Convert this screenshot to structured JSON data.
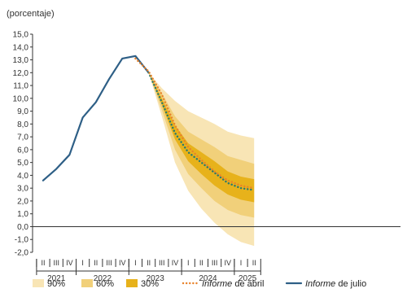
{
  "chart_data": {
    "type": "area",
    "ylabel": "(porcentaje)",
    "ylim": [
      -2,
      15
    ],
    "y_ticks": [
      -2,
      -1,
      0,
      1,
      2,
      3,
      4,
      5,
      6,
      7,
      8,
      9,
      10,
      11,
      12,
      13,
      14,
      15
    ],
    "y_tick_labels": [
      "-2,0",
      "-1,0",
      "0,0",
      "1,0",
      "2,0",
      "3,0",
      "4,0",
      "5,0",
      "6,0",
      "7,0",
      "8,0",
      "9,0",
      "10,0",
      "11,0",
      "12,0",
      "13,0",
      "14,0",
      "15,0"
    ],
    "quarter_labels": [
      "II",
      "III",
      "IV",
      "I",
      "II",
      "III",
      "IV",
      "I",
      "II",
      "III",
      "IV",
      "I",
      "II",
      "III",
      "IV",
      "I",
      "II"
    ],
    "years": [
      {
        "label": "2021",
        "start": 0,
        "end": 2
      },
      {
        "label": "2022",
        "start": 3,
        "end": 6
      },
      {
        "label": "2023",
        "start": 7,
        "end": 10
      },
      {
        "label": "2024",
        "start": 11,
        "end": 14
      },
      {
        "label": "2025",
        "start": 15,
        "end": 16
      }
    ],
    "series": [
      {
        "name": "Informe de julio",
        "style": "solid",
        "color": "#2e5f86",
        "x": [
          0,
          1,
          2,
          3,
          4,
          5,
          6,
          7,
          8
        ],
        "values": [
          3.6,
          4.5,
          5.6,
          8.5,
          9.7,
          11.5,
          13.1,
          13.3,
          12.0
        ]
      },
      {
        "name": "Informe de julio",
        "style": "dotted",
        "color": "#2a7a6e",
        "x": [
          8,
          9,
          10,
          11,
          12,
          13,
          14,
          15,
          16
        ],
        "values": [
          12.0,
          9.7,
          7.3,
          5.8,
          5.0,
          4.2,
          3.4,
          3.0,
          2.85
        ]
      },
      {
        "name": "Informe de abril",
        "style": "dotted",
        "color": "#e8822b",
        "x": [
          7,
          8,
          9,
          10,
          11,
          12,
          13,
          14,
          15,
          16
        ],
        "values": [
          13.1,
          12.1,
          10.3,
          7.9,
          6.2,
          5.2,
          4.3,
          3.6,
          3.2,
          3.0
        ]
      }
    ],
    "fan_bands": [
      {
        "name": "90%",
        "color": "#f8e5b5",
        "x": [
          8,
          9,
          10,
          11,
          12,
          13,
          14,
          15,
          16
        ],
        "lower": [
          12.0,
          8.6,
          5.0,
          2.8,
          1.4,
          0.3,
          -0.6,
          -1.2,
          -1.5
        ],
        "upper": [
          12.0,
          10.8,
          9.8,
          9.0,
          8.5,
          8.0,
          7.4,
          7.1,
          6.9
        ]
      },
      {
        "name": "60%",
        "color": "#f1d07a",
        "x": [
          8,
          9,
          10,
          11,
          12,
          13,
          14,
          15,
          16
        ],
        "lower": [
          12.0,
          9.1,
          6.0,
          4.1,
          3.0,
          2.0,
          1.3,
          0.9,
          0.7
        ],
        "upper": [
          12.0,
          10.4,
          8.6,
          7.4,
          6.8,
          6.2,
          5.5,
          5.2,
          4.9
        ]
      },
      {
        "name": "30%",
        "color": "#e7b21b",
        "x": [
          8,
          9,
          10,
          11,
          12,
          13,
          14,
          15,
          16
        ],
        "lower": [
          12.0,
          9.5,
          6.8,
          5.1,
          4.1,
          3.2,
          2.5,
          2.1,
          1.9
        ],
        "upper": [
          12.0,
          10.0,
          7.9,
          6.5,
          5.8,
          5.1,
          4.3,
          3.9,
          3.7
        ]
      }
    ],
    "legend": [
      {
        "label": "90%",
        "kind": "swatch",
        "color": "#f8e5b5"
      },
      {
        "label": "60%",
        "kind": "swatch",
        "color": "#f1d07a"
      },
      {
        "label": "30%",
        "kind": "swatch",
        "color": "#e7b21b"
      },
      {
        "label_italic": "Informe",
        "label_rest": " de abril",
        "kind": "dotted-line",
        "color": "#e8822b"
      },
      {
        "label_italic": "Informe",
        "label_rest": " de julio",
        "kind": "solid-line",
        "color": "#2e5f86"
      }
    ],
    "grid": false,
    "legend_position": "bottom"
  }
}
